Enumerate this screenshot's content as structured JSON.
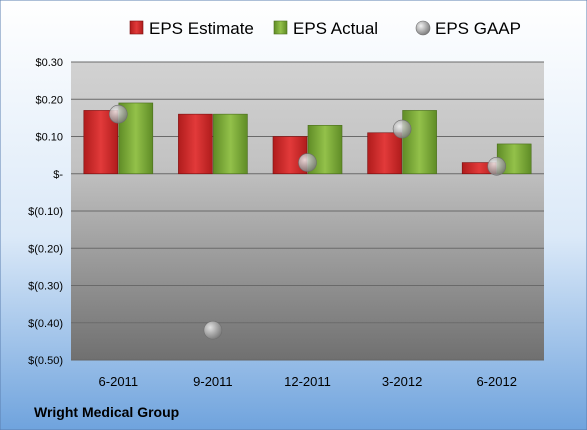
{
  "chart_data": {
    "type": "bar",
    "categories": [
      "6-2011",
      "9-2011",
      "12-2011",
      "3-2012",
      "6-2012"
    ],
    "series": [
      {
        "name": "EPS Estimate",
        "kind": "bar",
        "color": "#d42a2a",
        "values": [
          0.17,
          0.16,
          0.1,
          0.11,
          0.03
        ]
      },
      {
        "name": "EPS Actual",
        "kind": "bar",
        "color": "#7fae3a",
        "values": [
          0.19,
          0.16,
          0.13,
          0.17,
          0.08
        ]
      },
      {
        "name": "EPS GAAP",
        "kind": "marker",
        "color": "#a8a8a8",
        "values": [
          0.16,
          -0.42,
          0.03,
          0.12,
          0.02
        ]
      }
    ],
    "ylim": [
      -0.5,
      0.3
    ],
    "yticks": [
      0.3,
      0.2,
      0.1,
      0,
      -0.1,
      -0.2,
      -0.3,
      -0.4,
      -0.5
    ],
    "ytick_labels": [
      "$0.30",
      "$0.20",
      "$0.10",
      "$-",
      "$(0.10)",
      "$(0.20)",
      "$(0.30)",
      "$(0.40)",
      "$(0.50)"
    ],
    "grid": true,
    "legend_position": "top",
    "footer": "Wright Medical Group"
  }
}
